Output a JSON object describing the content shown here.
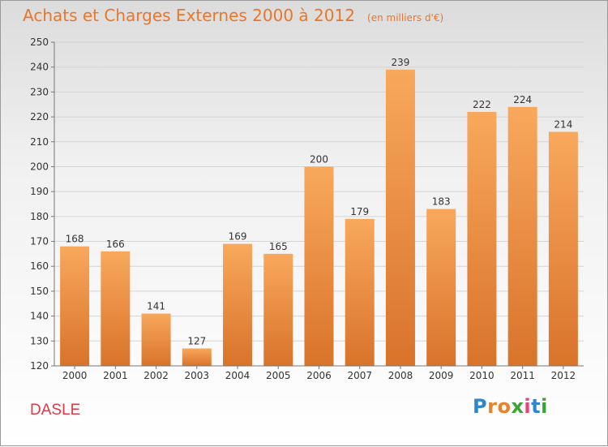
{
  "title": "Achats et Charges Externes 2000 à 2012",
  "unit_note": "(en milliers d'€)",
  "commune": "DASLE",
  "logo": {
    "letters": [
      {
        "ch": "P",
        "color": "#2e86d1"
      },
      {
        "ch": "r",
        "color": "#e8822a"
      },
      {
        "ch": "o",
        "color": "#e8822a"
      },
      {
        "ch": "x",
        "color": "#3aa535"
      },
      {
        "ch": "i",
        "color": "#e5447a"
      },
      {
        "ch": "t",
        "color": "#2e86d1"
      },
      {
        "ch": "i",
        "color": "#3aa535"
      }
    ]
  },
  "colors": {
    "title": "#e8772c",
    "bar_top": "#f8a85c",
    "bar_bottom": "#d9732a",
    "commune": "#dd3a46"
  },
  "chart_data": {
    "type": "bar",
    "categories": [
      "2000",
      "2001",
      "2002",
      "2003",
      "2004",
      "2005",
      "2006",
      "2007",
      "2008",
      "2009",
      "2010",
      "2011",
      "2012"
    ],
    "values": [
      168,
      166,
      141,
      127,
      169,
      165,
      200,
      179,
      239,
      183,
      222,
      224,
      214
    ],
    "ylim": [
      120,
      250
    ],
    "yticks": [
      120,
      130,
      140,
      150,
      160,
      170,
      180,
      190,
      200,
      210,
      220,
      230,
      240,
      250
    ],
    "grid": true,
    "data_labels": true
  }
}
